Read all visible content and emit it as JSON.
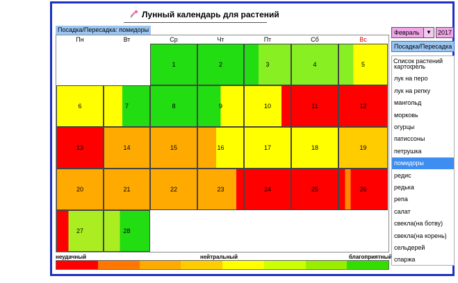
{
  "title": "Лунный календарь для растений",
  "mode_label": "Посадка/Пересадка: помидоры",
  "weekdays": [
    "Пн",
    "Вт",
    "Ср",
    "Чт",
    "Пт",
    "Сб",
    "Вс"
  ],
  "legend": {
    "left": "неудачный",
    "center": "нейтральный",
    "right": "благоприятный",
    "colors": [
      "#ff0000",
      "#ff7700",
      "#ffaa00",
      "#ffcc00",
      "#ffff00",
      "#ccff00",
      "#99ee00",
      "#33dd00"
    ]
  },
  "month": "Февраль",
  "year": "2017",
  "mode_button": "Посадка/Пересадка",
  "plants_header": "Список растений",
  "plants": [
    "картофель",
    "лук на перо",
    "лук на репку",
    "мангольд",
    "морковь",
    "огурцы",
    "патиссоны",
    "петрушка",
    "помидоры",
    "редис",
    "редька",
    "репа",
    "салат",
    "свекла(на ботву)",
    "свекла(на корень)",
    "сельдерей",
    "спаржа"
  ],
  "selected_plant": "помидоры",
  "days": [
    {
      "d": "1",
      "col": 2,
      "row": 0,
      "segs": [
        [
          "#22dd11",
          1
        ]
      ]
    },
    {
      "d": "2",
      "col": 3,
      "row": 0,
      "segs": [
        [
          "#22dd11",
          1
        ]
      ]
    },
    {
      "d": "3",
      "col": 4,
      "row": 0,
      "segs": [
        [
          "#22dd11",
          0.3
        ],
        [
          "#88f022",
          0.7
        ]
      ]
    },
    {
      "d": "4",
      "col": 5,
      "row": 0,
      "segs": [
        [
          "#88f022",
          1
        ]
      ]
    },
    {
      "d": "5",
      "col": 6,
      "row": 0,
      "segs": [
        [
          "#88f022",
          0.3
        ],
        [
          "#ffff00",
          0.7
        ]
      ]
    },
    {
      "d": "6",
      "col": 0,
      "row": 1,
      "segs": [
        [
          "#ffff00",
          1
        ]
      ]
    },
    {
      "d": "7",
      "col": 1,
      "row": 1,
      "segs": [
        [
          "#ffff00",
          0.4
        ],
        [
          "#22dd11",
          0.6
        ]
      ]
    },
    {
      "d": "8",
      "col": 2,
      "row": 1,
      "segs": [
        [
          "#22dd11",
          1
        ]
      ]
    },
    {
      "d": "9",
      "col": 3,
      "row": 1,
      "segs": [
        [
          "#22dd11",
          0.5
        ],
        [
          "#ffff00",
          0.5
        ]
      ]
    },
    {
      "d": "10",
      "col": 4,
      "row": 1,
      "segs": [
        [
          "#ffff00",
          0.8
        ],
        [
          "#ff0000",
          0.2
        ]
      ]
    },
    {
      "d": "11",
      "col": 5,
      "row": 1,
      "segs": [
        [
          "#ff0000",
          1
        ]
      ]
    },
    {
      "d": "12",
      "col": 6,
      "row": 1,
      "segs": [
        [
          "#ff0000",
          1
        ]
      ]
    },
    {
      "d": "13",
      "col": 0,
      "row": 2,
      "segs": [
        [
          "#ff0000",
          1
        ]
      ]
    },
    {
      "d": "14",
      "col": 1,
      "row": 2,
      "segs": [
        [
          "#ffaa00",
          1
        ]
      ]
    },
    {
      "d": "15",
      "col": 2,
      "row": 2,
      "segs": [
        [
          "#ffaa00",
          1
        ]
      ]
    },
    {
      "d": "16",
      "col": 3,
      "row": 2,
      "segs": [
        [
          "#ffaa00",
          0.4
        ],
        [
          "#ffff00",
          0.6
        ]
      ]
    },
    {
      "d": "17",
      "col": 4,
      "row": 2,
      "segs": [
        [
          "#ffff00",
          1
        ]
      ]
    },
    {
      "d": "18",
      "col": 5,
      "row": 2,
      "segs": [
        [
          "#ffff00",
          1
        ]
      ]
    },
    {
      "d": "19",
      "col": 6,
      "row": 2,
      "segs": [
        [
          "#ffcc00",
          1
        ]
      ]
    },
    {
      "d": "20",
      "col": 0,
      "row": 3,
      "segs": [
        [
          "#ffaa00",
          1
        ]
      ]
    },
    {
      "d": "21",
      "col": 1,
      "row": 3,
      "segs": [
        [
          "#ffaa00",
          1
        ]
      ]
    },
    {
      "d": "22",
      "col": 2,
      "row": 3,
      "segs": [
        [
          "#ffaa00",
          1
        ]
      ]
    },
    {
      "d": "23",
      "col": 3,
      "row": 3,
      "segs": [
        [
          "#ffaa00",
          0.85
        ],
        [
          "#ff0000",
          0.15
        ]
      ]
    },
    {
      "d": "24",
      "col": 4,
      "row": 3,
      "segs": [
        [
          "#ff0000",
          1
        ]
      ]
    },
    {
      "d": "25",
      "col": 5,
      "row": 3,
      "segs": [
        [
          "#ff0000",
          1
        ]
      ]
    },
    {
      "d": "26",
      "col": 6,
      "row": 3,
      "segs": [
        [
          "#ff0000",
          0.12
        ],
        [
          "#ff8800",
          0.12
        ],
        [
          "#ff0000",
          0.76
        ]
      ]
    },
    {
      "d": "27",
      "col": 0,
      "row": 4,
      "segs": [
        [
          "#ff0000",
          0.25
        ],
        [
          "#aaee22",
          0.75
        ]
      ]
    },
    {
      "d": "28",
      "col": 1,
      "row": 4,
      "segs": [
        [
          "#aaee22",
          0.35
        ],
        [
          "#22dd11",
          0.65
        ]
      ]
    }
  ]
}
